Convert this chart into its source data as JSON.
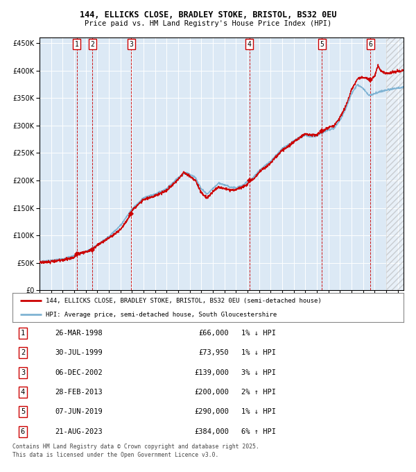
{
  "title1": "144, ELLICKS CLOSE, BRADLEY STOKE, BRISTOL, BS32 0EU",
  "title2": "Price paid vs. HM Land Registry's House Price Index (HPI)",
  "legend_line1": "144, ELLICKS CLOSE, BRADLEY STOKE, BRISTOL, BS32 0EU (semi-detached house)",
  "legend_line2": "HPI: Average price, semi-detached house, South Gloucestershire",
  "footer1": "Contains HM Land Registry data © Crown copyright and database right 2025.",
  "footer2": "This data is licensed under the Open Government Licence v3.0.",
  "transactions": [
    {
      "num": 1,
      "date_str": "26-MAR-1998",
      "date_x": 1998.23,
      "price": 66000,
      "hpi_diff": "1% ↓ HPI"
    },
    {
      "num": 2,
      "date_str": "30-JUL-1999",
      "date_x": 1999.58,
      "price": 73950,
      "hpi_diff": "1% ↓ HPI"
    },
    {
      "num": 3,
      "date_str": "06-DEC-2002",
      "date_x": 2002.93,
      "price": 139000,
      "hpi_diff": "3% ↓ HPI"
    },
    {
      "num": 4,
      "date_str": "28-FEB-2013",
      "date_x": 2013.16,
      "price": 200000,
      "hpi_diff": "2% ↑ HPI"
    },
    {
      "num": 5,
      "date_str": "07-JUN-2019",
      "date_x": 2019.43,
      "price": 290000,
      "hpi_diff": "1% ↓ HPI"
    },
    {
      "num": 6,
      "date_str": "21-AUG-2023",
      "date_x": 2023.64,
      "price": 384000,
      "hpi_diff": "6% ↑ HPI"
    }
  ],
  "hpi_color": "#7fb3d3",
  "price_color": "#cc0000",
  "plot_bg": "#dce9f5",
  "grid_color": "#ffffff",
  "vline_color": "#cc0000",
  "ylim": [
    0,
    460000
  ],
  "xlim_start": 1995,
  "xlim_end": 2026.5,
  "yticks": [
    0,
    50000,
    100000,
    150000,
    200000,
    250000,
    300000,
    350000,
    400000,
    450000
  ],
  "xticks": [
    1995,
    1996,
    1997,
    1998,
    1999,
    2000,
    2001,
    2002,
    2003,
    2004,
    2005,
    2006,
    2007,
    2008,
    2009,
    2010,
    2011,
    2012,
    2013,
    2014,
    2015,
    2016,
    2017,
    2018,
    2019,
    2020,
    2021,
    2022,
    2023,
    2024,
    2025,
    2026
  ]
}
